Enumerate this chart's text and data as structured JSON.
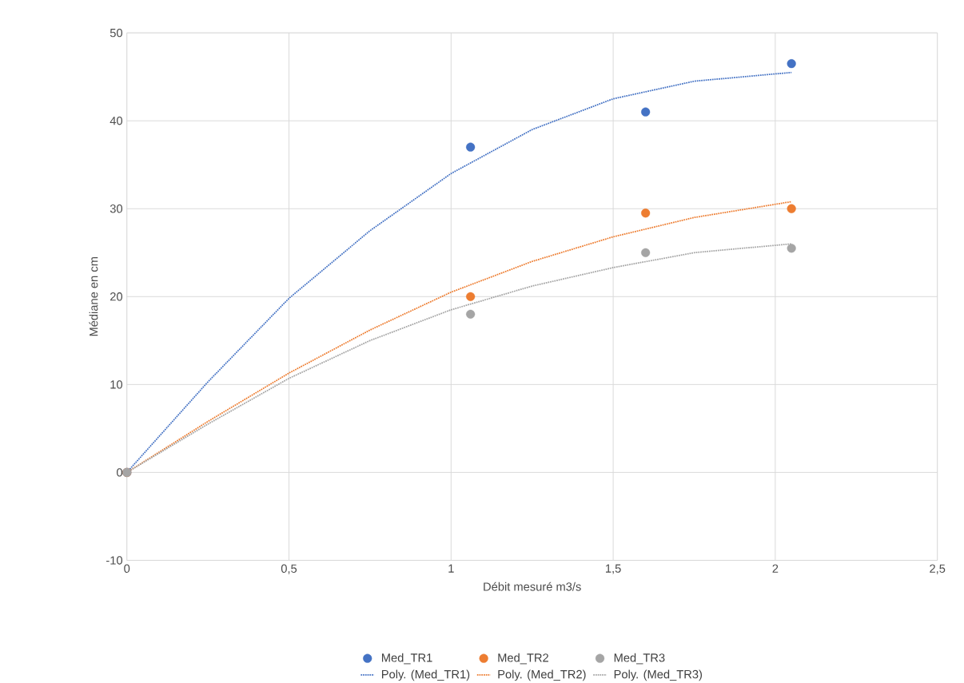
{
  "chart_data": {
    "type": "scatter",
    "xlabel": "Débit mesuré m3/s",
    "ylabel": "Médiane en cm",
    "xlim": [
      0,
      2.5
    ],
    "ylim": [
      -10,
      50
    ],
    "xticks": [
      0,
      {
        "value": 0.5,
        "label": "0,5"
      },
      1,
      {
        "value": 1.5,
        "label": "1,5"
      },
      2,
      {
        "value": 2.5,
        "label": "2,5"
      }
    ],
    "yticks": [
      -10,
      0,
      10,
      20,
      30,
      40,
      50
    ],
    "grid": true,
    "legend": "bottom",
    "series": [
      {
        "name": "Med_TR1",
        "marker": "circle",
        "color": "#4472c4",
        "x": [
          0,
          1.06,
          1.6,
          2.05
        ],
        "values": [
          0,
          37,
          41,
          46.5
        ]
      },
      {
        "name": "Med_TR2",
        "marker": "circle",
        "color": "#ed7d31",
        "x": [
          0,
          1.06,
          1.6,
          2.05
        ],
        "values": [
          0,
          20,
          29.5,
          30
        ]
      },
      {
        "name": "Med_TR3",
        "marker": "circle",
        "color": "#a5a5a5",
        "x": [
          0,
          1.06,
          1.6,
          2.05
        ],
        "values": [
          0,
          18,
          25,
          25.5
        ]
      },
      {
        "name": "Poly. (Med_TR1)",
        "type": "line",
        "line_style": "dotted",
        "color": "#4472c4",
        "x": [
          0,
          0.25,
          0.5,
          0.75,
          1.0,
          1.25,
          1.5,
          1.75,
          2.05
        ],
        "values": [
          0,
          10.3,
          19.8,
          27.5,
          34,
          39,
          42.5,
          44.5,
          45.5
        ]
      },
      {
        "name": "Poly. (Med_TR2)",
        "type": "line",
        "line_style": "dotted",
        "color": "#ed7d31",
        "x": [
          0,
          0.25,
          0.5,
          0.75,
          1.0,
          1.25,
          1.5,
          1.75,
          2.05
        ],
        "values": [
          0,
          5.8,
          11.3,
          16.2,
          20.5,
          24,
          26.8,
          29,
          30.8
        ]
      },
      {
        "name": "Poly. (Med_TR3)",
        "type": "line",
        "line_style": "dotted",
        "color": "#a5a5a5",
        "x": [
          0,
          0.25,
          0.5,
          0.75,
          1.0,
          1.25,
          1.5,
          1.75,
          2.05
        ],
        "values": [
          0,
          5.5,
          10.7,
          15,
          18.5,
          21.2,
          23.3,
          25,
          26
        ]
      }
    ]
  }
}
